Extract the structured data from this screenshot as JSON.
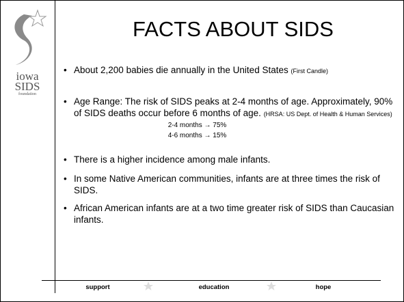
{
  "logo": {
    "name": [
      "iowa",
      "SIDS"
    ],
    "tagline": "foundation"
  },
  "title": "FACTS ABOUT SIDS",
  "bullets": [
    {
      "text": "About 2,200 babies die annually in the United States",
      "source": "(First Candle)"
    },
    {
      "text": "Age Range: The risk of SIDS peaks at 2-4 months of age. Approximately, 90% of SIDS deaths occur before 6 months of age.",
      "source": "(HRSA: US Dept. of Health & Human Services)",
      "sub": [
        "2-4 months → 75%",
        "4-6 months → 15%"
      ]
    },
    {
      "text": "There is a higher incidence among male infants."
    },
    {
      "text": "In some Native American communities, infants are at three times the risk of SIDS."
    },
    {
      "text": "African American infants are at a two time greater risk of SIDS than Caucasian infants."
    }
  ],
  "footer": [
    "support",
    "education",
    "hope"
  ]
}
